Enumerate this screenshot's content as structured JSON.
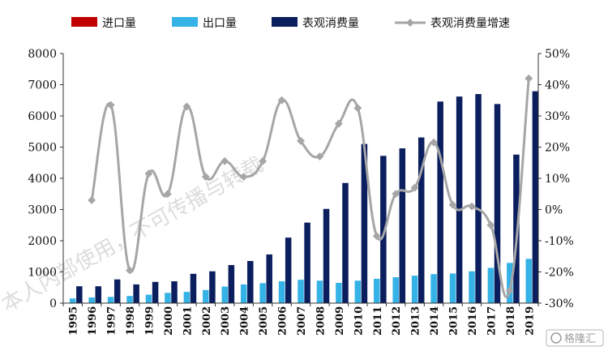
{
  "colors": {
    "import": "#c00000",
    "export": "#35b3e6",
    "consumption": "#0b1e5e",
    "growth": "#a6a6a6",
    "axis": "#333333"
  },
  "watermark": "本人内部使用，不可传播与转载",
  "brand": "格隆汇",
  "chart_data": {
    "type": "bar",
    "categories": [
      "1995",
      "1996",
      "1997",
      "1998",
      "1999",
      "2000",
      "2001",
      "2002",
      "2003",
      "2004",
      "2005",
      "2006",
      "2007",
      "2008",
      "2009",
      "2010",
      "2011",
      "2012",
      "2013",
      "2014",
      "2015",
      "2016",
      "2017",
      "2018",
      "2019"
    ],
    "legend_position": "top",
    "left_axis": {
      "min": 0,
      "max": 8000,
      "ticks": [
        "0",
        "1000",
        "2000",
        "3000",
        "4000",
        "5000",
        "6000",
        "7000",
        "8000"
      ]
    },
    "right_axis": {
      "min": -30,
      "max": 50,
      "ticks": [
        "-30%",
        "-20%",
        "-10%",
        "0%",
        "10%",
        "20%",
        "30%",
        "40%",
        "50%"
      ]
    },
    "series": [
      {
        "name": "进口量",
        "kind": "bar",
        "axis": "left",
        "values": [
          0,
          0,
          0,
          0,
          0,
          0,
          0,
          0,
          0,
          0,
          0,
          0,
          0,
          0,
          0,
          0,
          0,
          0,
          0,
          0,
          0,
          0,
          0,
          0,
          0
        ]
      },
      {
        "name": "出口量",
        "kind": "bar",
        "axis": "left",
        "values": [
          150,
          180,
          200,
          230,
          270,
          330,
          360,
          420,
          530,
          600,
          640,
          700,
          750,
          720,
          650,
          720,
          780,
          830,
          880,
          930,
          950,
          1020,
          1130,
          1290,
          1420
        ]
      },
      {
        "name": "表观消费量",
        "kind": "bar",
        "axis": "left",
        "values": [
          540,
          540,
          760,
          600,
          680,
          700,
          940,
          1020,
          1220,
          1350,
          1560,
          2100,
          2580,
          3020,
          3850,
          5100,
          4720,
          4960,
          5310,
          6460,
          6620,
          6700,
          6380,
          4760,
          6790
        ]
      },
      {
        "name": "表观消费量增速",
        "kind": "line",
        "axis": "right",
        "values": [
          null,
          3.0,
          33.5,
          -19.5,
          11.5,
          5.0,
          33.0,
          10.5,
          15.5,
          10.5,
          15.5,
          35.0,
          22.0,
          17.0,
          27.5,
          32.5,
          -8.5,
          5.0,
          7.0,
          21.5,
          1.5,
          1.0,
          -5.0,
          -26.0,
          42.0
        ]
      }
    ]
  }
}
